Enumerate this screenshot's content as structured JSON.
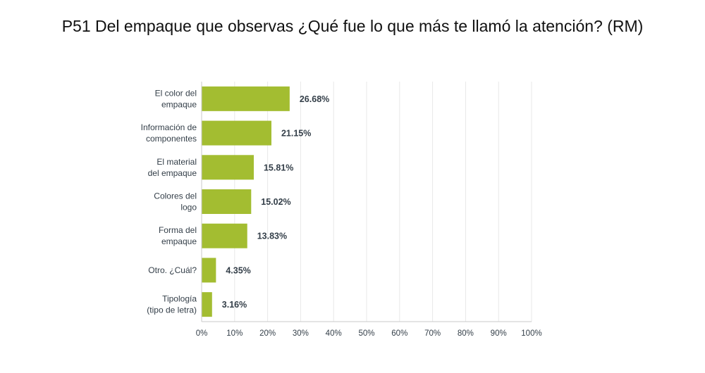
{
  "chart_data": {
    "type": "bar",
    "orientation": "horizontal",
    "title": "P51 Del empaque que observas ¿Qué fue lo que más te llamó la atención? (RM)",
    "categories": [
      [
        "El color del",
        "empaque"
      ],
      [
        "Información de",
        "componentes"
      ],
      [
        "El material",
        "del empaque"
      ],
      [
        "Colores del",
        "logo"
      ],
      [
        "Forma del",
        "empaque"
      ],
      [
        "Otro. ¿Cuál?"
      ],
      [
        "Tipología",
        "(tipo de letra)"
      ]
    ],
    "values": [
      26.68,
      21.15,
      15.81,
      15.02,
      13.83,
      4.35,
      3.16
    ],
    "value_labels": [
      "26.68%",
      "21.15%",
      "15.81%",
      "15.02%",
      "13.83%",
      "4.35%",
      "3.16%"
    ],
    "xlim": [
      0,
      100
    ],
    "x_ticks": [
      "0%",
      "10%",
      "20%",
      "30%",
      "40%",
      "50%",
      "60%",
      "70%",
      "80%",
      "90%",
      "100%"
    ],
    "grid": true,
    "bar_color": "#a3bd31",
    "grid_color": "#e8e8e8",
    "axis_color": "#c9c9c9"
  }
}
